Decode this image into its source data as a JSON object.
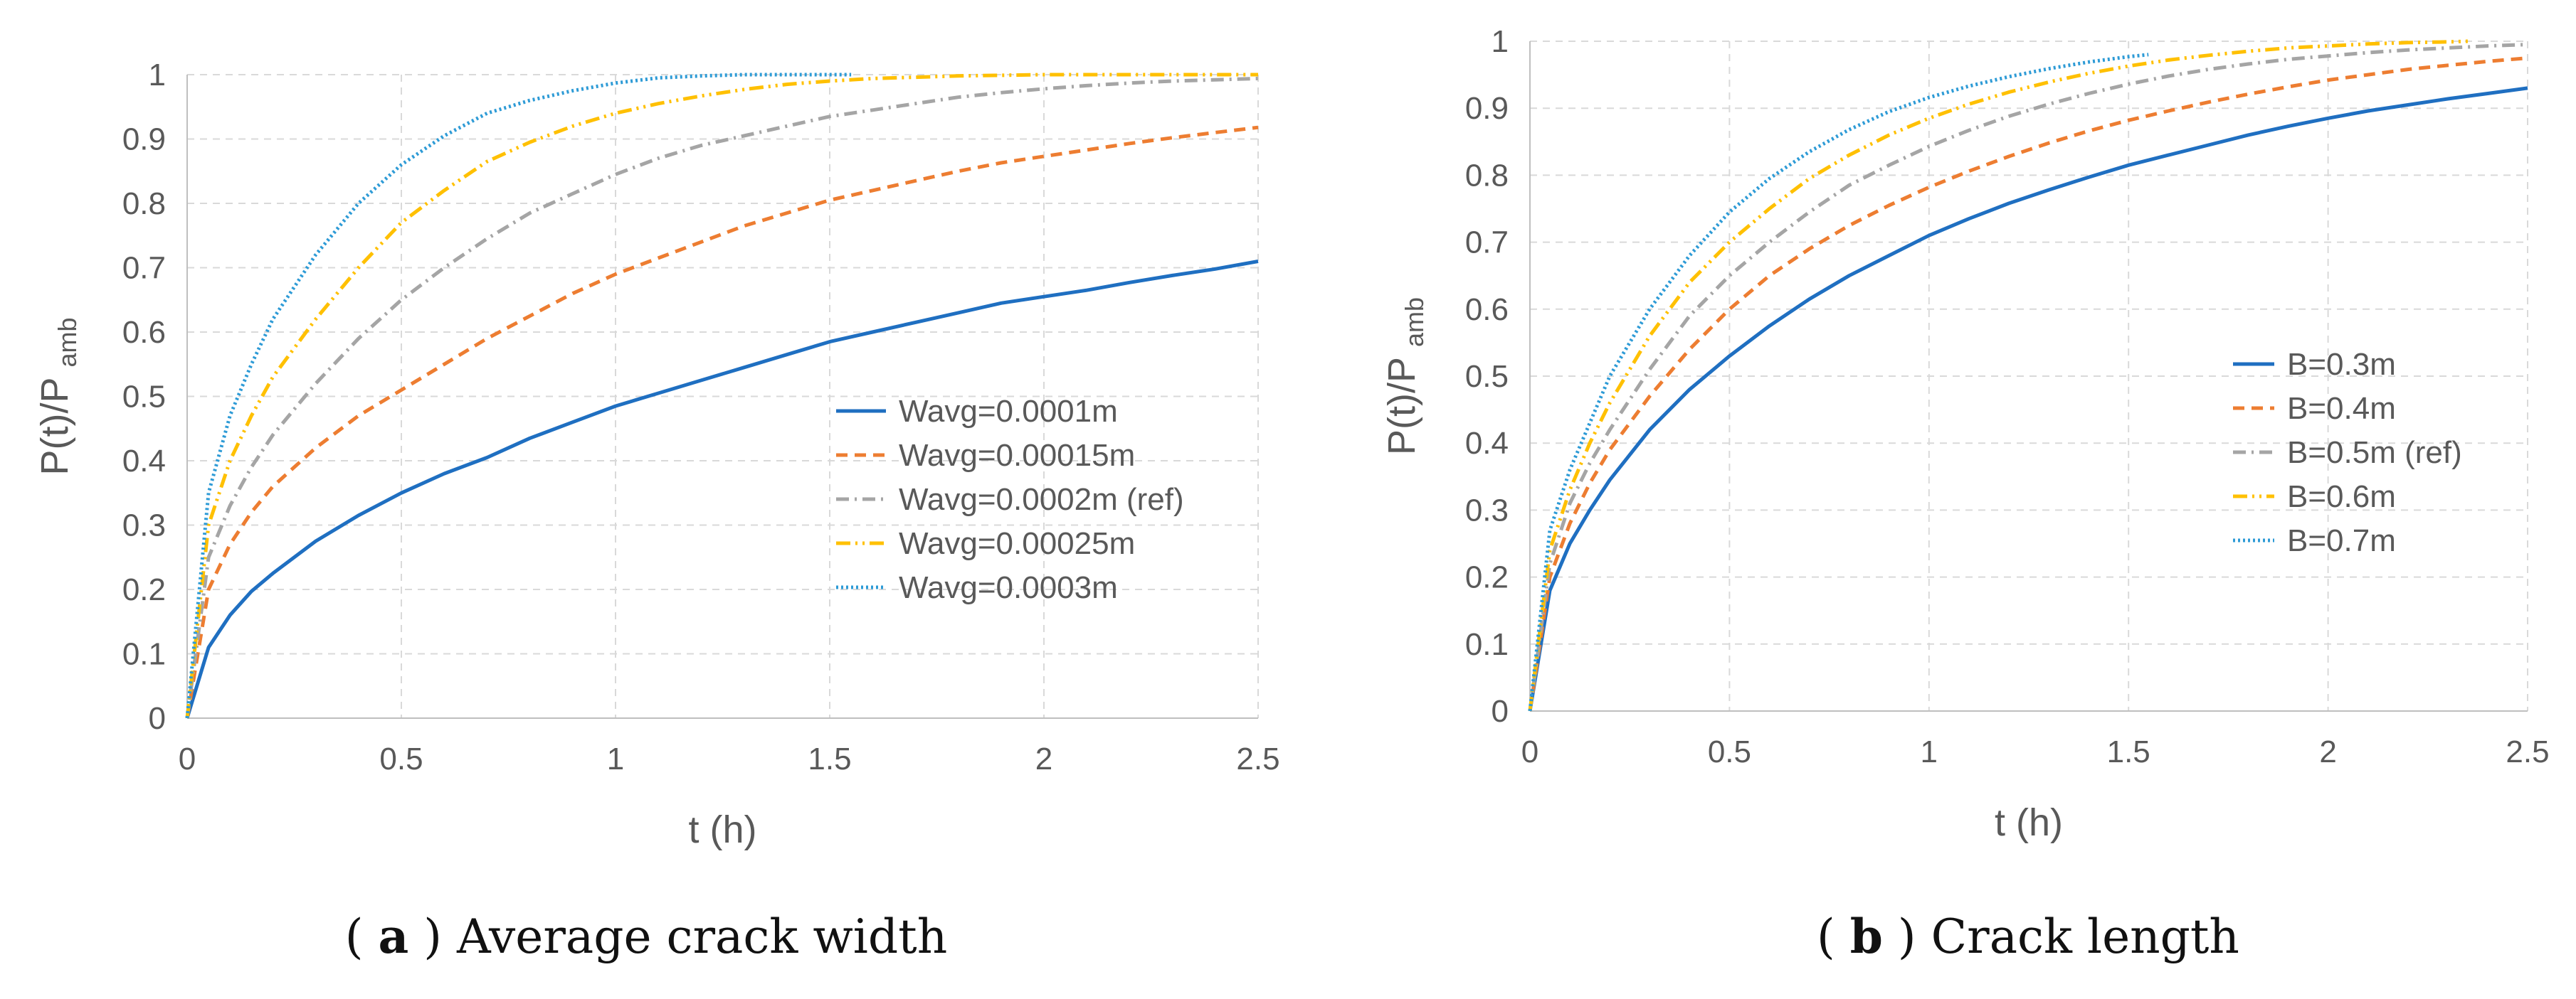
{
  "chart_data": [
    {
      "type": "line",
      "caption_letter": "a",
      "caption_prefix": "(",
      "caption_suffix": ")",
      "caption_text": " Average crack width",
      "xlabel": "t (h)",
      "ylabel_main": "P(t)/P",
      "ylabel_sub": "amb",
      "xlim": [
        0,
        2.5
      ],
      "ylim": [
        0,
        1
      ],
      "xticks": [
        "0",
        "0.5",
        "1",
        "1.5",
        "2",
        "2.5"
      ],
      "yticks": [
        "0",
        "0.1",
        "0.2",
        "0.3",
        "0.4",
        "0.5",
        "0.6",
        "0.7",
        "0.8",
        "0.9",
        "1"
      ],
      "grid": true,
      "legend_position": "center-right",
      "series": [
        {
          "name": "Wavg=0.0001m",
          "color": "#1f6fc1",
          "style": "solid",
          "x": [
            0,
            0.05,
            0.1,
            0.15,
            0.2,
            0.3,
            0.4,
            0.5,
            0.6,
            0.7,
            0.8,
            0.9,
            1.0,
            1.1,
            1.2,
            1.3,
            1.4,
            1.5,
            1.6,
            1.7,
            1.8,
            1.9,
            2.0,
            2.1,
            2.2,
            2.3,
            2.4,
            2.5
          ],
          "y": [
            0,
            0.11,
            0.16,
            0.197,
            0.225,
            0.275,
            0.315,
            0.35,
            0.38,
            0.405,
            0.435,
            0.46,
            0.485,
            0.505,
            0.525,
            0.545,
            0.565,
            0.585,
            0.6,
            0.615,
            0.63,
            0.645,
            0.655,
            0.665,
            0.677,
            0.688,
            0.698,
            0.71
          ]
        },
        {
          "name": "Wavg=0.00015m",
          "color": "#ed7d31",
          "style": "dashed",
          "x": [
            0,
            0.05,
            0.1,
            0.15,
            0.2,
            0.3,
            0.4,
            0.5,
            0.6,
            0.7,
            0.8,
            0.9,
            1.0,
            1.1,
            1.2,
            1.3,
            1.4,
            1.5,
            1.6,
            1.7,
            1.8,
            1.9,
            2.0,
            2.1,
            2.2,
            2.3,
            2.4,
            2.5
          ],
          "y": [
            0,
            0.2,
            0.27,
            0.32,
            0.36,
            0.42,
            0.47,
            0.51,
            0.55,
            0.59,
            0.625,
            0.66,
            0.69,
            0.715,
            0.74,
            0.765,
            0.785,
            0.805,
            0.82,
            0.835,
            0.85,
            0.863,
            0.873,
            0.883,
            0.893,
            0.902,
            0.91,
            0.918
          ]
        },
        {
          "name": "Wavg=0.0002m (ref)",
          "color": "#a5a5a5",
          "style": "dashdot",
          "x": [
            0,
            0.05,
            0.1,
            0.15,
            0.2,
            0.3,
            0.4,
            0.5,
            0.6,
            0.7,
            0.8,
            0.9,
            1.0,
            1.1,
            1.2,
            1.3,
            1.4,
            1.5,
            1.6,
            1.7,
            1.8,
            1.9,
            2.0,
            2.1,
            2.2,
            2.3,
            2.4,
            2.5
          ],
          "y": [
            0,
            0.25,
            0.33,
            0.39,
            0.44,
            0.52,
            0.59,
            0.65,
            0.7,
            0.745,
            0.785,
            0.815,
            0.845,
            0.87,
            0.89,
            0.905,
            0.92,
            0.935,
            0.945,
            0.955,
            0.965,
            0.972,
            0.978,
            0.983,
            0.987,
            0.99,
            0.992,
            0.994
          ]
        },
        {
          "name": "Wavg=0.00025m",
          "color": "#ffc000",
          "style": "dashdotdot",
          "x": [
            0,
            0.05,
            0.1,
            0.15,
            0.2,
            0.3,
            0.4,
            0.5,
            0.6,
            0.7,
            0.8,
            0.9,
            1.0,
            1.1,
            1.2,
            1.3,
            1.4,
            1.5,
            1.6,
            1.7,
            1.8,
            1.9,
            2.0,
            2.2,
            2.4,
            2.5
          ],
          "y": [
            0,
            0.3,
            0.4,
            0.47,
            0.53,
            0.62,
            0.7,
            0.77,
            0.82,
            0.865,
            0.895,
            0.92,
            0.94,
            0.955,
            0.967,
            0.977,
            0.985,
            0.99,
            0.994,
            0.996,
            0.998,
            0.999,
            1.0,
            1.0,
            1.0,
            1.0
          ]
        },
        {
          "name": "Wavg=0.0003m",
          "color": "#2e9bd6",
          "style": "dotted",
          "x": [
            0,
            0.05,
            0.1,
            0.15,
            0.2,
            0.3,
            0.4,
            0.5,
            0.6,
            0.7,
            0.8,
            0.9,
            1.0,
            1.1,
            1.2,
            1.3,
            1.4,
            1.55
          ],
          "y": [
            0,
            0.35,
            0.47,
            0.55,
            0.62,
            0.72,
            0.8,
            0.86,
            0.905,
            0.94,
            0.96,
            0.975,
            0.987,
            0.995,
            0.998,
            1.0,
            1.0,
            1.0
          ]
        }
      ]
    },
    {
      "type": "line",
      "caption_letter": "b",
      "caption_prefix": "(",
      "caption_suffix": ")",
      "caption_text": " Crack length",
      "xlabel": "t (h)",
      "ylabel_main": "P(t)/P",
      "ylabel_sub": "amb",
      "xlim": [
        0,
        2.5
      ],
      "ylim": [
        0,
        1
      ],
      "xticks": [
        "0",
        "0.5",
        "1",
        "1.5",
        "2",
        "2.5"
      ],
      "yticks": [
        "0",
        "0.1",
        "0.2",
        "0.3",
        "0.4",
        "0.5",
        "0.6",
        "0.7",
        "0.8",
        "0.9",
        "1"
      ],
      "grid": true,
      "legend_position": "center-right",
      "series": [
        {
          "name": "B=0.3m",
          "color": "#1f6fc1",
          "style": "solid",
          "x": [
            0,
            0.05,
            0.1,
            0.15,
            0.2,
            0.3,
            0.4,
            0.5,
            0.6,
            0.7,
            0.8,
            0.9,
            1.0,
            1.1,
            1.2,
            1.3,
            1.4,
            1.5,
            1.6,
            1.7,
            1.8,
            1.9,
            2.0,
            2.1,
            2.2,
            2.3,
            2.4,
            2.5
          ],
          "y": [
            0,
            0.18,
            0.25,
            0.3,
            0.345,
            0.42,
            0.48,
            0.53,
            0.575,
            0.615,
            0.65,
            0.68,
            0.71,
            0.735,
            0.758,
            0.778,
            0.797,
            0.815,
            0.83,
            0.845,
            0.86,
            0.873,
            0.885,
            0.896,
            0.905,
            0.914,
            0.922,
            0.93
          ]
        },
        {
          "name": "B=0.4m",
          "color": "#ed7d31",
          "style": "dashed",
          "x": [
            0,
            0.05,
            0.1,
            0.15,
            0.2,
            0.3,
            0.4,
            0.5,
            0.6,
            0.7,
            0.8,
            0.9,
            1.0,
            1.1,
            1.2,
            1.3,
            1.4,
            1.5,
            1.6,
            1.7,
            1.8,
            1.9,
            2.0,
            2.1,
            2.2,
            2.3,
            2.4,
            2.5
          ],
          "y": [
            0,
            0.2,
            0.28,
            0.34,
            0.39,
            0.47,
            0.54,
            0.6,
            0.65,
            0.69,
            0.725,
            0.755,
            0.782,
            0.806,
            0.828,
            0.848,
            0.866,
            0.882,
            0.896,
            0.909,
            0.921,
            0.932,
            0.942,
            0.95,
            0.958,
            0.964,
            0.97,
            0.975
          ]
        },
        {
          "name": "B=0.5m (ref)",
          "color": "#a5a5a5",
          "style": "dashdot",
          "x": [
            0,
            0.05,
            0.1,
            0.15,
            0.2,
            0.3,
            0.4,
            0.5,
            0.6,
            0.7,
            0.8,
            0.9,
            1.0,
            1.1,
            1.2,
            1.3,
            1.4,
            1.5,
            1.6,
            1.7,
            1.8,
            1.9,
            2.0,
            2.1,
            2.2,
            2.3,
            2.4,
            2.5
          ],
          "y": [
            0,
            0.22,
            0.31,
            0.37,
            0.42,
            0.51,
            0.59,
            0.65,
            0.7,
            0.745,
            0.785,
            0.815,
            0.843,
            0.867,
            0.888,
            0.906,
            0.922,
            0.936,
            0.948,
            0.958,
            0.966,
            0.973,
            0.978,
            0.983,
            0.987,
            0.99,
            0.993,
            0.995
          ]
        },
        {
          "name": "B=0.6m",
          "color": "#ffc000",
          "style": "dashdotdot",
          "x": [
            0,
            0.05,
            0.1,
            0.15,
            0.2,
            0.3,
            0.4,
            0.5,
            0.6,
            0.7,
            0.8,
            0.9,
            1.0,
            1.1,
            1.2,
            1.3,
            1.4,
            1.5,
            1.6,
            1.7,
            1.8,
            1.9,
            2.0,
            2.1,
            2.2,
            2.3,
            2.35
          ],
          "y": [
            0,
            0.24,
            0.33,
            0.4,
            0.46,
            0.56,
            0.64,
            0.7,
            0.75,
            0.795,
            0.83,
            0.86,
            0.885,
            0.906,
            0.924,
            0.939,
            0.952,
            0.963,
            0.972,
            0.979,
            0.985,
            0.99,
            0.993,
            0.996,
            0.998,
            0.999,
            1.0
          ]
        },
        {
          "name": "B=0.7m",
          "color": "#2e9bd6",
          "style": "dotted",
          "x": [
            0,
            0.05,
            0.1,
            0.15,
            0.2,
            0.3,
            0.4,
            0.5,
            0.6,
            0.7,
            0.8,
            0.9,
            1.0,
            1.1,
            1.2,
            1.3,
            1.4,
            1.5,
            1.55
          ],
          "y": [
            0,
            0.27,
            0.36,
            0.43,
            0.5,
            0.6,
            0.68,
            0.745,
            0.795,
            0.835,
            0.868,
            0.895,
            0.916,
            0.933,
            0.947,
            0.959,
            0.969,
            0.977,
            0.98
          ]
        }
      ]
    }
  ]
}
